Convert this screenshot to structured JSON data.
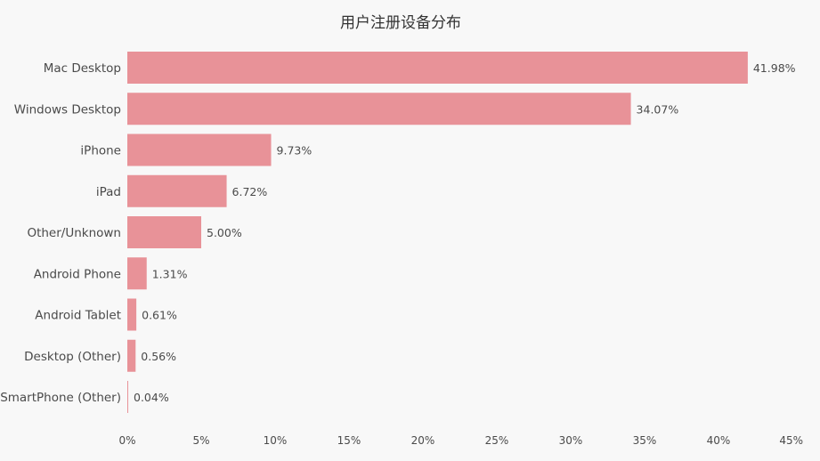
{
  "chart_data": {
    "type": "bar",
    "orientation": "horizontal",
    "title": "用户注册设备分布",
    "categories": [
      "Mac Desktop",
      "Windows Desktop",
      "iPhone",
      "iPad",
      "Other/Unknown",
      "Android Phone",
      "Android Tablet",
      "Desktop (Other)",
      "SmartPhone (Other)"
    ],
    "values": [
      41.98,
      34.07,
      9.73,
      6.72,
      5.0,
      1.31,
      0.61,
      0.56,
      0.04
    ],
    "value_labels": [
      "41.98%",
      "34.07%",
      "9.73%",
      "6.72%",
      "5.00%",
      "1.31%",
      "0.61%",
      "0.56%",
      "0.04%"
    ],
    "xlim": [
      0,
      45
    ],
    "xticks": [
      0,
      5,
      10,
      15,
      20,
      25,
      30,
      35,
      40,
      45
    ],
    "xtick_labels": [
      "0%",
      "5%",
      "10%",
      "15%",
      "20%",
      "25%",
      "30%",
      "35%",
      "40%",
      "45%"
    ],
    "bar_color": "#e89298",
    "grid": false,
    "legend": "none"
  }
}
